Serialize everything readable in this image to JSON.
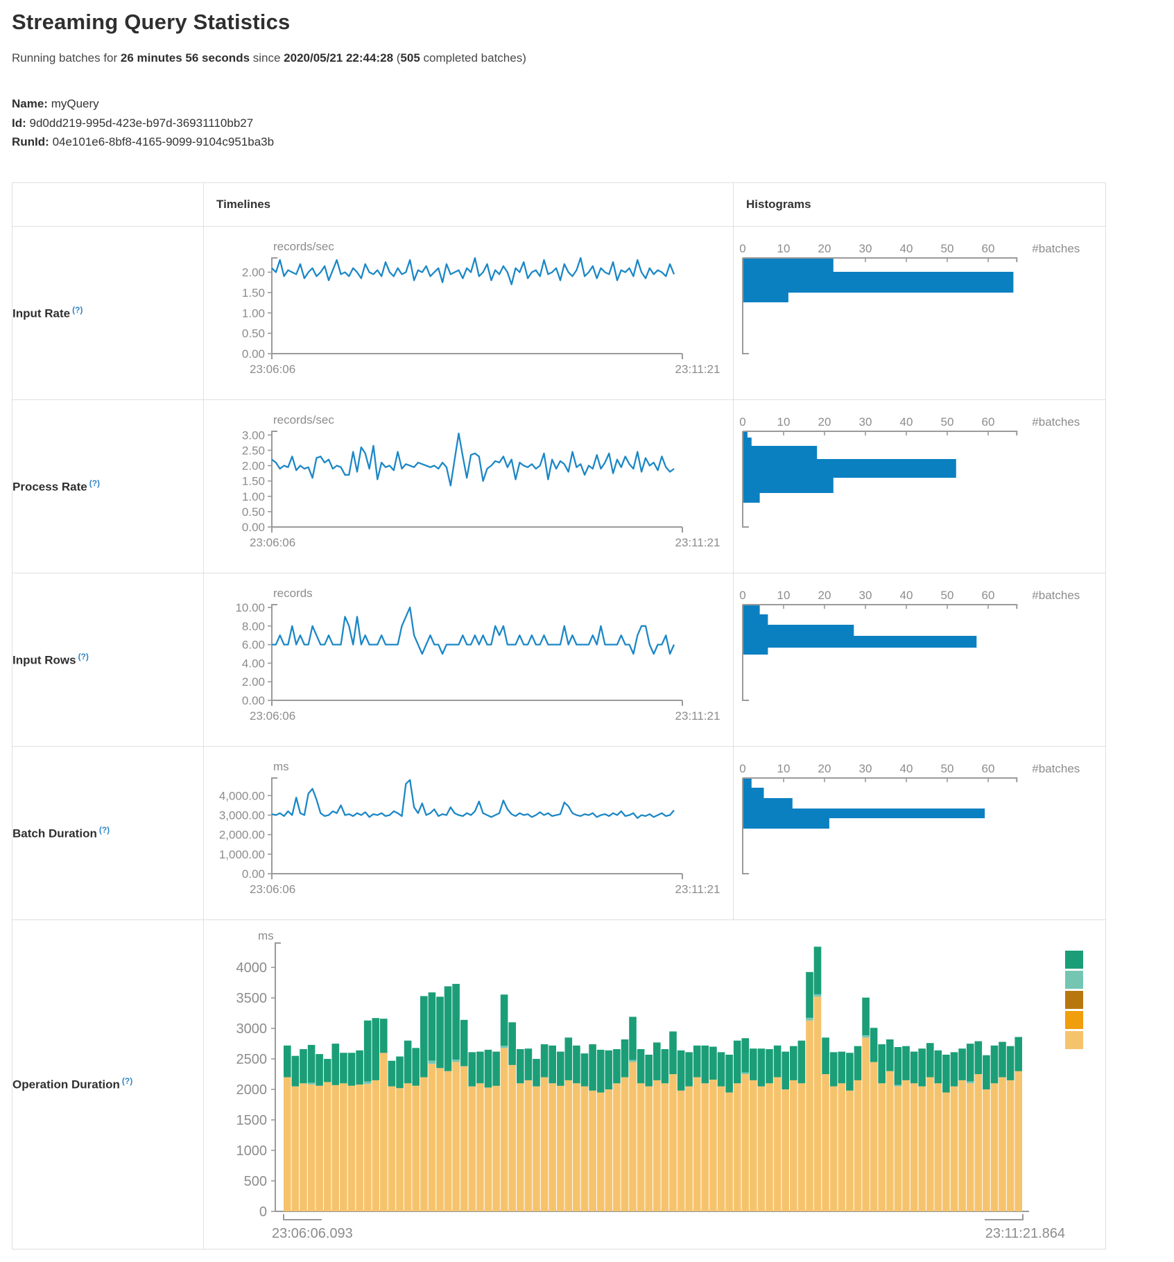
{
  "page": {
    "title": "Streaming Query Statistics",
    "run_prefix": "Running batches for ",
    "run_duration": "26 minutes 56 seconds",
    "run_mid": " since ",
    "run_start": "2020/05/21 22:44:28",
    "run_open_paren": " (",
    "completed_batches": "505",
    "run_suffix": " completed batches)",
    "name_label": "Name:",
    "name_value": "myQuery",
    "id_label": "Id:",
    "id_value": "9d0dd219-995d-423e-b97d-36931110bb27",
    "runid_label": "RunId:",
    "runid_value": "04e101e6-8bf8-4165-9099-9104c951ba3b"
  },
  "table": {
    "col_timelines": "Timelines",
    "col_histograms": "Histograms",
    "rows": [
      {
        "label": "Input Rate",
        "help": "(?)"
      },
      {
        "label": "Process Rate",
        "help": "(?)"
      },
      {
        "label": "Input Rows",
        "help": "(?)"
      },
      {
        "label": "Batch Duration",
        "help": "(?)"
      },
      {
        "label": "Operation Duration",
        "help": "(?)"
      }
    ]
  },
  "colors": {
    "line_blue": "#1b87c6",
    "hist_blue": "#0b80c1",
    "axis_gray": "#9a9a9a",
    "tick_text": "#8c8c8c",
    "stack_teal": "#1b9e77",
    "stack_light_teal": "#74c6b2",
    "stack_brown": "#b8770e",
    "stack_orange": "#f19e0d",
    "stack_tan": "#f6c36d"
  },
  "chart_data": [
    {
      "name": "input-rate",
      "timeline": {
        "type": "line",
        "unit": "records/sec",
        "x_start": "23:06:06",
        "x_end": "23:11:21",
        "y_max": 2.35,
        "y_ticks": [
          [
            2,
            "2.00"
          ],
          [
            1.5,
            "1.50"
          ],
          [
            1,
            "1.00"
          ],
          [
            0.5,
            "0.50"
          ],
          [
            0,
            "0.00"
          ]
        ],
        "values": [
          2.1,
          2.0,
          2.3,
          1.9,
          2.05,
          2.0,
          1.95,
          2.2,
          1.85,
          2.0,
          2.1,
          1.9,
          2.0,
          2.15,
          1.8,
          2.05,
          2.3,
          1.95,
          2.0,
          1.9,
          2.1,
          2.0,
          1.85,
          2.2,
          2.0,
          1.95,
          2.05,
          1.9,
          2.25,
          2.0,
          1.9,
          2.1,
          1.95,
          2.0,
          2.3,
          1.8,
          2.05,
          2.0,
          2.15,
          1.9,
          2.0,
          2.1,
          1.75,
          2.2,
          1.95,
          2.0,
          2.05,
          1.85,
          2.1,
          2.0,
          2.35,
          1.9,
          2.0,
          2.2,
          1.8,
          2.05,
          1.95,
          2.15,
          2.0,
          1.7,
          2.1,
          2.0,
          2.25,
          1.85,
          2.0,
          2.05,
          1.9,
          2.3,
          1.95,
          2.0,
          2.1,
          1.8,
          2.2,
          2.0,
          1.9,
          2.05,
          2.35,
          1.9,
          2.0,
          2.15,
          1.85,
          2.1,
          2.0,
          1.95,
          2.25,
          1.8,
          2.05,
          2.0,
          2.1,
          1.9,
          2.3,
          2.0,
          1.85,
          2.1,
          1.95,
          2.05,
          2.0,
          1.9,
          2.2,
          1.95
        ]
      },
      "histogram": {
        "type": "bar",
        "xlabel": "#batches",
        "x_max": 67,
        "x_ticks": [
          0,
          10,
          20,
          30,
          40,
          50,
          60
        ],
        "bins": [
          {
            "v": 22,
            "h": 19
          },
          {
            "v": 66,
            "h": 30
          },
          {
            "v": 11,
            "h": 14
          }
        ]
      }
    },
    {
      "name": "process-rate",
      "timeline": {
        "type": "line",
        "unit": "records/sec",
        "x_start": "23:06:06",
        "x_end": "23:11:21",
        "y_max": 3.12,
        "y_ticks": [
          [
            3,
            "3.00"
          ],
          [
            2.5,
            "2.50"
          ],
          [
            2,
            "2.00"
          ],
          [
            1.5,
            "1.50"
          ],
          [
            1,
            "1.00"
          ],
          [
            0.5,
            "0.50"
          ],
          [
            0,
            "0.00"
          ]
        ],
        "values": [
          2.2,
          2.1,
          1.9,
          2.0,
          1.95,
          2.3,
          1.85,
          2.0,
          1.9,
          1.95,
          1.6,
          2.25,
          2.3,
          2.1,
          2.2,
          1.9,
          2.0,
          1.95,
          1.7,
          1.7,
          2.45,
          1.8,
          2.6,
          2.4,
          1.9,
          2.65,
          1.55,
          2.1,
          1.95,
          2.0,
          1.85,
          2.45,
          1.9,
          2.05,
          2.0,
          1.95,
          2.1,
          2.05,
          2.0,
          1.95,
          2.0,
          1.9,
          2.1,
          1.95,
          1.35,
          2.2,
          3.05,
          2.3,
          1.6,
          2.35,
          2.4,
          2.3,
          1.5,
          1.9,
          2.0,
          2.15,
          2.1,
          2.3,
          1.95,
          2.2,
          1.55,
          2.1,
          2.0,
          1.95,
          2.05,
          1.9,
          2.0,
          2.4,
          1.55,
          2.2,
          1.9,
          2.15,
          2.05,
          1.8,
          2.45,
          1.95,
          2.05,
          1.7,
          2.0,
          1.9,
          2.35,
          1.9,
          2.1,
          2.4,
          1.75,
          2.2,
          1.95,
          2.3,
          2.05,
          1.9,
          2.45,
          1.8,
          2.25,
          2.0,
          2.1,
          1.85,
          2.3,
          1.95,
          1.8,
          1.9
        ]
      },
      "histogram": {
        "type": "bar",
        "xlabel": "#batches",
        "x_max": 67,
        "x_ticks": [
          0,
          10,
          20,
          30,
          40,
          50,
          60
        ],
        "bins": [
          {
            "v": 1,
            "h": 8
          },
          {
            "v": 2,
            "h": 12
          },
          {
            "v": 18,
            "h": 19
          },
          {
            "v": 52,
            "h": 27
          },
          {
            "v": 22,
            "h": 22
          },
          {
            "v": 4,
            "h": 14
          }
        ]
      }
    },
    {
      "name": "input-rows",
      "timeline": {
        "type": "line",
        "unit": "records",
        "x_start": "23:06:06",
        "x_end": "23:11:21",
        "y_max": 10.3,
        "y_ticks": [
          [
            10,
            "10.00"
          ],
          [
            8,
            "8.00"
          ],
          [
            6,
            "6.00"
          ],
          [
            4,
            "4.00"
          ],
          [
            2,
            "2.00"
          ],
          [
            0,
            "0.00"
          ]
        ],
        "values": [
          6,
          6,
          7,
          6,
          6,
          8,
          6,
          7,
          6,
          6,
          8,
          7,
          6,
          6,
          7,
          6,
          6,
          6,
          9,
          8,
          6,
          9,
          6,
          7,
          6,
          6,
          6,
          7,
          6,
          6,
          6,
          6,
          8,
          9,
          10,
          7,
          6,
          5,
          6,
          7,
          6,
          6,
          5,
          6,
          6,
          6,
          6,
          7,
          6,
          6,
          7,
          6,
          7,
          6,
          6,
          8,
          7,
          8,
          6,
          6,
          6,
          7,
          6,
          6,
          7,
          6,
          6,
          7,
          6,
          6,
          6,
          6,
          8,
          6,
          7,
          6,
          6,
          6,
          6,
          7,
          6,
          8,
          6,
          6,
          6,
          6,
          7,
          6,
          6,
          5,
          7,
          8,
          8,
          6,
          5,
          6,
          6,
          7,
          5,
          6
        ]
      },
      "histogram": {
        "type": "bar",
        "xlabel": "#batches",
        "x_max": 67,
        "x_ticks": [
          0,
          10,
          20,
          30,
          40,
          50,
          60
        ],
        "bins": [
          {
            "v": 4,
            "h": 13
          },
          {
            "v": 6,
            "h": 15
          },
          {
            "v": 27,
            "h": 16
          },
          {
            "v": 57,
            "h": 17
          },
          {
            "v": 6,
            "h": 10
          }
        ]
      }
    },
    {
      "name": "batch-duration",
      "timeline": {
        "type": "line",
        "unit": "ms",
        "x_start": "23:06:06",
        "x_end": "23:11:21",
        "y_max": 4900,
        "y_ticks": [
          [
            4000,
            "4,000.00"
          ],
          [
            3000,
            "3,000.00"
          ],
          [
            2000,
            "2,000.00"
          ],
          [
            1000,
            "1,000.00"
          ],
          [
            0,
            "0.00"
          ]
        ],
        "values": [
          3050,
          3000,
          3100,
          2950,
          3200,
          3000,
          3900,
          3100,
          3000,
          4100,
          4350,
          3800,
          3100,
          2950,
          3000,
          3200,
          3100,
          3500,
          3000,
          3050,
          2950,
          3100,
          3000,
          3150,
          2900,
          3050,
          3000,
          3100,
          2950,
          3000,
          3200,
          3100,
          2950,
          4600,
          4800,
          3400,
          3100,
          3600,
          3000,
          3100,
          3300,
          2950,
          3050,
          3000,
          3400,
          3100,
          3000,
          2950,
          3100,
          3000,
          3200,
          3700,
          3100,
          3000,
          2900,
          3000,
          3100,
          3750,
          3300,
          3050,
          2950,
          3100,
          3000,
          3050,
          2900,
          3000,
          3150,
          3000,
          3100,
          2950,
          3000,
          3050,
          3650,
          3450,
          3100,
          3000,
          2950,
          3050,
          3000,
          3100,
          2900,
          3000,
          3050,
          2950,
          3100,
          3000,
          3200,
          2950,
          3000,
          3100,
          2850,
          3000,
          2950,
          3050,
          2900,
          3000,
          3100,
          2950,
          3000,
          3250
        ]
      },
      "histogram": {
        "type": "bar",
        "xlabel": "#batches",
        "x_max": 67,
        "x_ticks": [
          0,
          10,
          20,
          30,
          40,
          50,
          60
        ],
        "bins": [
          {
            "v": 2,
            "h": 13
          },
          {
            "v": 5,
            "h": 15
          },
          {
            "v": 12,
            "h": 15
          },
          {
            "v": 59,
            "h": 14
          },
          {
            "v": 21,
            "h": 15
          }
        ]
      }
    },
    {
      "name": "operation-duration",
      "stacked": {
        "type": "bar",
        "unit": "ms",
        "x_start": "23:06:06.093",
        "x_end": "23:11:21.864",
        "y_max": 4400,
        "y_ticks": [
          [
            4000,
            "4000"
          ],
          [
            3500,
            "3500"
          ],
          [
            3000,
            "3000"
          ],
          [
            2500,
            "2500"
          ],
          [
            2000,
            "2000"
          ],
          [
            1500,
            "1500"
          ],
          [
            1000,
            "1000"
          ],
          [
            500,
            "500"
          ],
          [
            0,
            "0"
          ]
        ],
        "legend_colors": [
          "#1b9e77",
          "#74c6b2",
          "#b8770e",
          "#f19e0d",
          "#f6c36d"
        ],
        "series": [
          {
            "name": "bottom",
            "color": "#f6c36d",
            "values": [
              2200,
              2050,
              2100,
              2080,
              2060,
              2120,
              2070,
              2100,
              2060,
              2080,
              2090,
              2150,
              2600,
              2050,
              2020,
              2100,
              2060,
              2200,
              2420,
              2350,
              2300,
              2450,
              2380,
              2050,
              2100,
              2030,
              2060,
              2680,
              2400,
              2100,
              2150,
              2050,
              2200,
              2100,
              2060,
              2150,
              2100,
              2050,
              1980,
              1950,
              2000,
              2100,
              2200,
              2450,
              2100,
              2050,
              2150,
              2100,
              2250,
              1980,
              2050,
              2200,
              2100,
              2160,
              2050,
              1950,
              2100,
              2250,
              2150,
              2050,
              2100,
              2200,
              2000,
              2150,
              2100,
              3130,
              3520,
              2250,
              2050,
              2100,
              1980,
              2150,
              2850,
              2450,
              2100,
              2300,
              2050,
              2150,
              2100,
              2050,
              2200,
              2100,
              1950,
              2050,
              2150,
              2100,
              2250,
              2000,
              2100,
              2200,
              2150,
              2300
            ]
          },
          {
            "name": "middle",
            "color": "#74c6b2",
            "values": [
              0,
              0,
              0,
              30,
              0,
              0,
              0,
              0,
              0,
              0,
              40,
              0,
              0,
              0,
              0,
              0,
              0,
              0,
              50,
              0,
              0,
              40,
              0,
              0,
              0,
              0,
              0,
              35,
              0,
              0,
              0,
              0,
              0,
              0,
              0,
              0,
              0,
              0,
              0,
              0,
              0,
              0,
              0,
              30,
              0,
              0,
              0,
              0,
              0,
              0,
              0,
              0,
              0,
              0,
              0,
              0,
              0,
              30,
              0,
              0,
              0,
              0,
              0,
              0,
              0,
              45,
              40,
              0,
              0,
              0,
              0,
              0,
              35,
              0,
              0,
              0,
              25,
              0,
              0,
              0,
              0,
              0,
              0,
              0,
              0,
              30,
              0,
              0,
              0,
              0,
              0,
              0
            ]
          },
          {
            "name": "top",
            "color": "#1b9e77",
            "values": [
              520,
              500,
              560,
              620,
              520,
              380,
              680,
              500,
              540,
              560,
              1000,
              1020,
              560,
              420,
              520,
              700,
              620,
              1330,
              1120,
              1170,
              1390,
              1240,
              760,
              560,
              520,
              620,
              560,
              840,
              700,
              560,
              520,
              450,
              540,
              620,
              560,
              700,
              620,
              540,
              760,
              700,
              640,
              560,
              620,
              710,
              560,
              520,
              620,
              560,
              700,
              660,
              560,
              520,
              620,
              540,
              560,
              620,
              700,
              560,
              520,
              620,
              560,
              520,
              620,
              560,
              700,
              750,
              780,
              600,
              560,
              520,
              620,
              560,
              620,
              560,
              640,
              520,
              620,
              560,
              520,
              620,
              560,
              540,
              620,
              560,
              520,
              620,
              540,
              560,
              620,
              580,
              560,
              560
            ]
          }
        ]
      }
    }
  ]
}
